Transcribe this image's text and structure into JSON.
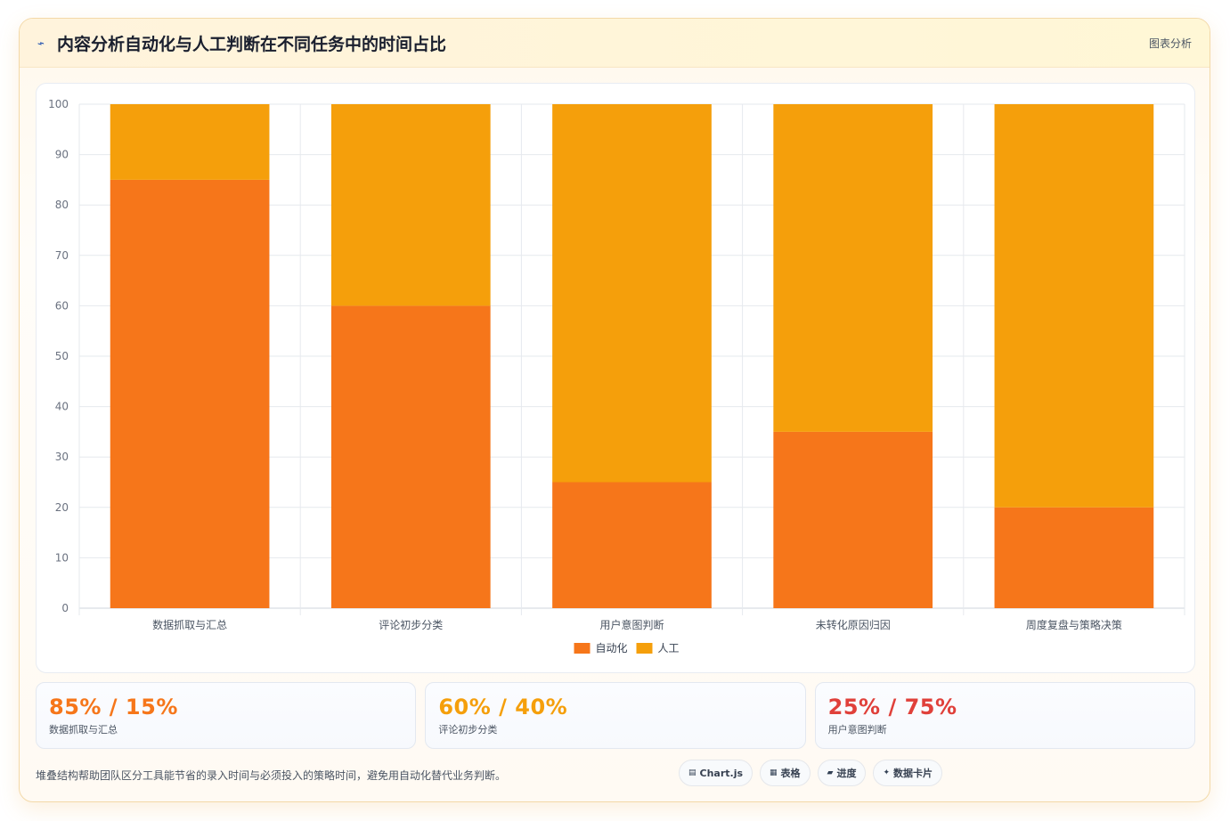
{
  "header": {
    "icon": "lightning-icon",
    "title": "内容分析自动化与人工判断在不同任务中的时间占比",
    "tag": "图表分析"
  },
  "chart_data": {
    "type": "bar",
    "stacked": true,
    "categories": [
      "数据抓取与汇总",
      "评论初步分类",
      "用户意图判断",
      "未转化原因归因",
      "周度复盘与策略决策"
    ],
    "series": [
      {
        "name": "自动化",
        "values": [
          85,
          60,
          25,
          35,
          20
        ],
        "color": "#f6761a"
      },
      {
        "name": "人工",
        "values": [
          15,
          40,
          75,
          65,
          80
        ],
        "color": "#f59f0b"
      }
    ],
    "ylim": [
      0,
      100
    ],
    "yticks": [
      0,
      10,
      20,
      30,
      40,
      50,
      60,
      70,
      80,
      90,
      100
    ],
    "grid": true,
    "legend": "bottom",
    "title": "",
    "xlabel": "",
    "ylabel": ""
  },
  "stats": [
    {
      "value": "85% / 15%",
      "label": "数据抓取与汇总",
      "color": "#f6761a"
    },
    {
      "value": "60% / 40%",
      "label": "评论初步分类",
      "color": "#f59f0b"
    },
    {
      "value": "25% / 75%",
      "label": "用户意图判断",
      "color": "#e0403a"
    }
  ],
  "footer": {
    "note": "堆叠结构帮助团队区分工具能节省的录入时间与必须投入的策略时间，避免用自动化替代业务判断。",
    "pills": [
      {
        "icon": "chart-icon",
        "glyph": "▤",
        "label": "Chart.js"
      },
      {
        "icon": "table-icon",
        "glyph": "▦",
        "label": "表格"
      },
      {
        "icon": "progress-icon",
        "glyph": "▰",
        "label": "进度"
      },
      {
        "icon": "sparkle-icon",
        "glyph": "✦",
        "label": "数据卡片"
      }
    ]
  }
}
